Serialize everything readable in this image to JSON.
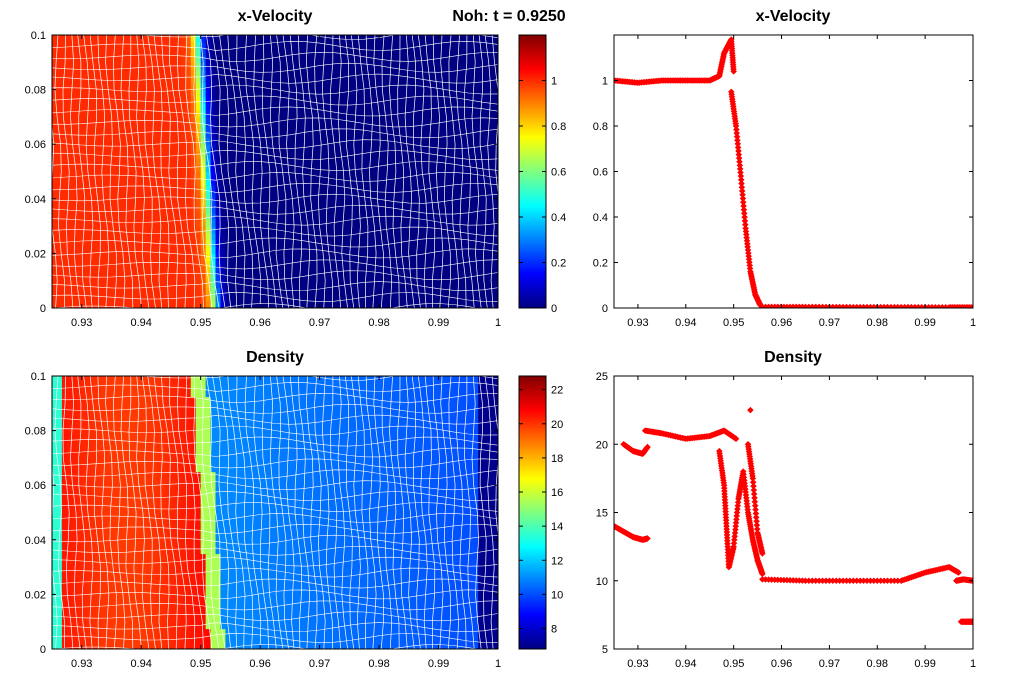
{
  "figure_title": "Noh: t = 0.9250",
  "chart_data": [
    {
      "id": "velocity_field",
      "type": "heatmap",
      "title": "x-Velocity",
      "xlim": [
        0.925,
        1.0
      ],
      "ylim": [
        0,
        0.1
      ],
      "xticks": [
        "0.93",
        "0.94",
        "0.95",
        "0.96",
        "0.97",
        "0.98",
        "0.99",
        "1"
      ],
      "yticks": [
        "0",
        "0.02",
        "0.04",
        "0.06",
        "0.08",
        "0.1"
      ],
      "colorbar": {
        "clim": [
          0,
          1.2
        ],
        "ticks": [
          "0",
          "0.2",
          "0.4",
          "0.6",
          "0.8",
          "1"
        ]
      },
      "mesh_lines_color": "#ffffff",
      "shock_position_x": [
        0.9495,
        0.9525
      ],
      "pre_shock_value": 1.0,
      "post_shock_value": 0.0
    },
    {
      "id": "velocity_scatter",
      "type": "scatter",
      "title": "x-Velocity",
      "xlim": [
        0.925,
        1.0
      ],
      "ylim": [
        0,
        1.2
      ],
      "xticks": [
        "0.93",
        "0.94",
        "0.95",
        "0.96",
        "0.97",
        "0.98",
        "0.99",
        "1"
      ],
      "yticks": [
        "0",
        "0.2",
        "0.4",
        "0.6",
        "0.8",
        "1"
      ],
      "marker_color": "#ff0000",
      "segments": [
        {
          "x": [
            0.925,
            0.93,
            0.935,
            0.94,
            0.945,
            0.947
          ],
          "y": [
            1.0,
            0.99,
            1.0,
            1.0,
            1.0,
            1.02
          ]
        },
        {
          "x": [
            0.947,
            0.948,
            0.9495,
            0.95
          ],
          "y": [
            1.02,
            1.12,
            1.18,
            1.04
          ]
        },
        {
          "x": [
            0.9495,
            0.9505,
            0.9515,
            0.9525,
            0.9535,
            0.9545,
            0.9555,
            0.956
          ],
          "y": [
            0.95,
            0.8,
            0.58,
            0.35,
            0.16,
            0.06,
            0.015,
            0.005
          ]
        },
        {
          "x": [
            0.956,
            0.965,
            0.975,
            0.985,
            0.995,
            1.0
          ],
          "y": [
            0.005,
            0.005,
            0.004,
            0.004,
            0.003,
            0.003
          ]
        }
      ]
    },
    {
      "id": "density_field",
      "type": "heatmap",
      "title": "Density",
      "xlim": [
        0.925,
        1.0
      ],
      "ylim": [
        0,
        0.1
      ],
      "xticks": [
        "0.93",
        "0.94",
        "0.95",
        "0.96",
        "0.97",
        "0.98",
        "0.99",
        "1"
      ],
      "yticks": [
        "0",
        "0.02",
        "0.04",
        "0.06",
        "0.08",
        "0.1"
      ],
      "colorbar": {
        "clim": [
          6.8,
          22.8
        ],
        "ticks": [
          "8",
          "10",
          "12",
          "14",
          "16",
          "18",
          "20",
          "22"
        ]
      },
      "mesh_lines_color": "#ffffff",
      "shock_position_x": [
        0.9495,
        0.9525
      ],
      "post_shock_value": 20.5,
      "pre_shock_range": [
        11.0,
        10.0
      ],
      "boundary_left_value": 13.5,
      "boundary_right_value": 7.0
    },
    {
      "id": "density_scatter",
      "type": "scatter",
      "title": "Density",
      "xlim": [
        0.925,
        1.0
      ],
      "ylim": [
        5,
        25
      ],
      "xticks": [
        "0.93",
        "0.94",
        "0.95",
        "0.96",
        "0.97",
        "0.98",
        "0.99",
        "1"
      ],
      "yticks": [
        "5",
        "10",
        "15",
        "20",
        "25"
      ],
      "marker_color": "#ff0000",
      "segments": [
        {
          "x": [
            0.925,
            0.927,
            0.929,
            0.931,
            0.932
          ],
          "y": [
            14.0,
            13.6,
            13.2,
            13.0,
            13.1
          ]
        },
        {
          "x": [
            0.927,
            0.929,
            0.931,
            0.932
          ],
          "y": [
            20.0,
            19.5,
            19.3,
            19.8
          ]
        },
        {
          "x": [
            0.9315,
            0.935,
            0.94,
            0.945,
            0.948,
            0.9505
          ],
          "y": [
            21.0,
            20.8,
            20.4,
            20.6,
            21.0,
            20.4
          ]
        },
        {
          "x": [
            0.947,
            0.948,
            0.9485,
            0.949,
            0.95,
            0.951,
            0.952,
            0.953,
            0.954,
            0.955,
            0.956
          ],
          "y": [
            19.5,
            17.0,
            14.0,
            11.0,
            12.5,
            16.0,
            18.0,
            15.0,
            13.0,
            11.5,
            10.5
          ]
        },
        {
          "x": [
            0.953,
            0.954,
            0.955,
            0.956
          ],
          "y": [
            20.0,
            17.5,
            13.5,
            12.0
          ]
        },
        {
          "x": [
            0.9535
          ],
          "y": [
            22.5
          ]
        },
        {
          "x": [
            0.956,
            0.965,
            0.975,
            0.985,
            0.99,
            0.995,
            0.997
          ],
          "y": [
            10.1,
            10.0,
            10.0,
            10.0,
            10.6,
            11.0,
            10.6
          ]
        },
        {
          "x": [
            0.9965,
            0.998,
            1.0
          ],
          "y": [
            10.0,
            10.1,
            10.0
          ]
        },
        {
          "x": [
            0.9975,
            0.999,
            1.0
          ],
          "y": [
            7.0,
            7.0,
            7.0
          ]
        }
      ]
    }
  ]
}
